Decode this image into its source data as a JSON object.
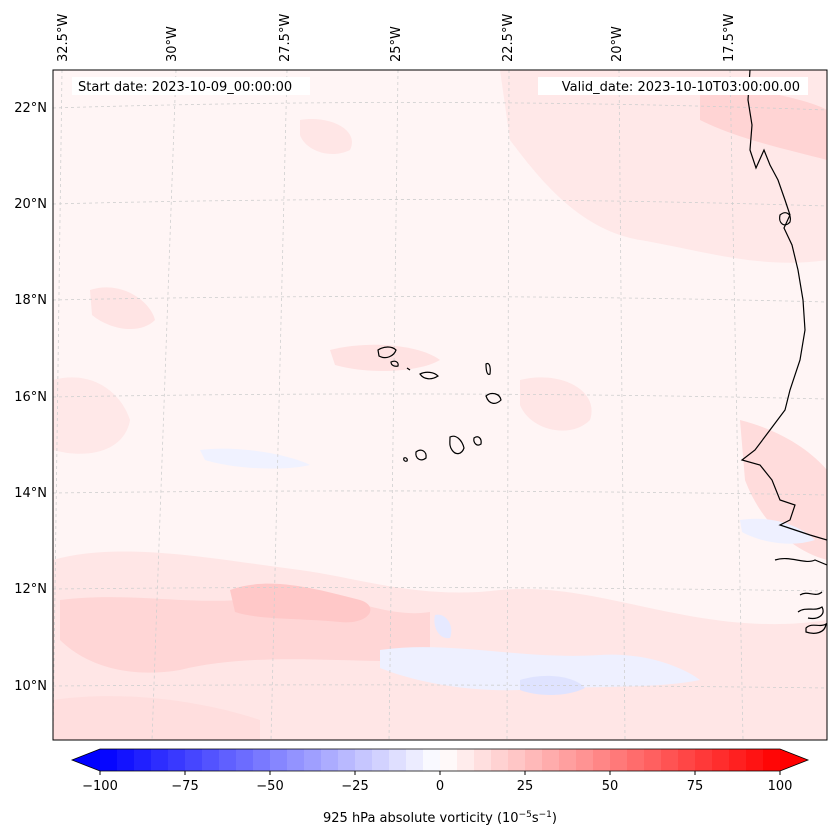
{
  "header": {
    "start_date": "Start date: 2023-10-09_00:00:00",
    "valid_date": "Valid_date: 2023-10-10T03:00:00.00"
  },
  "map": {
    "lon_labels": [
      "32.5°W",
      "30°W",
      "27.5°W",
      "25°W",
      "22.5°W",
      "20°W",
      "17.5°W"
    ],
    "lat_labels": [
      "22°N",
      "20°N",
      "18°N",
      "16°N",
      "14°N",
      "12°N",
      "10°N"
    ],
    "field_colors": {
      "background": "#fff5f5",
      "positive_light": "#ffe4e4",
      "positive_mid": "#ffd0d0",
      "negative_light": "#eef0ff",
      "negative_mid": "#dde0ff"
    }
  },
  "colorbar": {
    "min": -100,
    "max": 100,
    "tick_values": [
      -100,
      -75,
      -50,
      -25,
      0,
      25,
      50,
      75,
      100
    ],
    "tick_labels": [
      "−100",
      "−75",
      "−50",
      "−25",
      "0",
      "25",
      "50",
      "75",
      "100"
    ],
    "label": "925 hPa absolute vorticity (10",
    "label_exp1": "−5",
    "label_mid": "s",
    "label_exp2": "−1",
    "label_end": ")",
    "color_low": "#0000ff",
    "color_mid": "#ffffff",
    "color_high": "#ff0000"
  }
}
